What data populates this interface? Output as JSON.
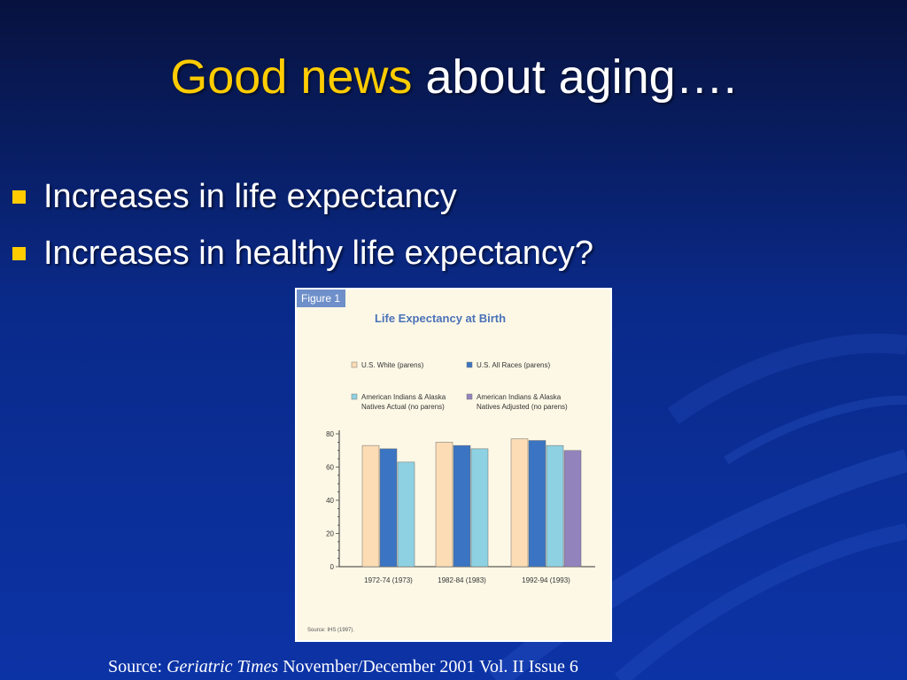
{
  "slide": {
    "title_highlight": "Good news",
    "title_rest": " about aging….",
    "bullets": [
      "Increases in life expectancy",
      "Increases in healthy life expectancy?"
    ],
    "source_prefix": "Source: ",
    "source_journal": "Geriatric Times",
    "source_rest": " November/December 2001 Vol. II Issue 6"
  },
  "colors": {
    "title_highlight": "#ffcc00",
    "bullet": "#ffcc00",
    "series": [
      "#fcdcb4",
      "#3b74c2",
      "#8ed1e2",
      "#9383bd"
    ]
  },
  "chart_data": {
    "type": "bar",
    "figure_label": "Figure 1",
    "title": "Life Expectancy at Birth",
    "categories": [
      "1972-74 (1973)",
      "1982-84 (1983)",
      "1992-94 (1993)"
    ],
    "series": [
      {
        "name": "U.S. White (parens)",
        "values": [
          73,
          75,
          77
        ]
      },
      {
        "name": "U.S. All Races (parens)",
        "values": [
          71,
          73,
          76
        ]
      },
      {
        "name": "American Indians & Alaska Natives Actual (no parens)",
        "legend_lines": [
          "American Indians & Alaska",
          "Natives Actual (no parens)"
        ],
        "values": [
          63,
          71,
          73
        ]
      },
      {
        "name": "American Indians & Alaska Natives Adjusted (no parens)",
        "legend_lines": [
          "American Indians & Alaska",
          "Natives Adjusted (no parens)"
        ],
        "values": [
          null,
          null,
          70
        ]
      }
    ],
    "y_ticks": [
      0,
      20,
      40,
      60,
      80
    ],
    "ylim": [
      0,
      80
    ],
    "grid": false,
    "legend_position": "top",
    "note": "Source: IHS (1997)."
  }
}
